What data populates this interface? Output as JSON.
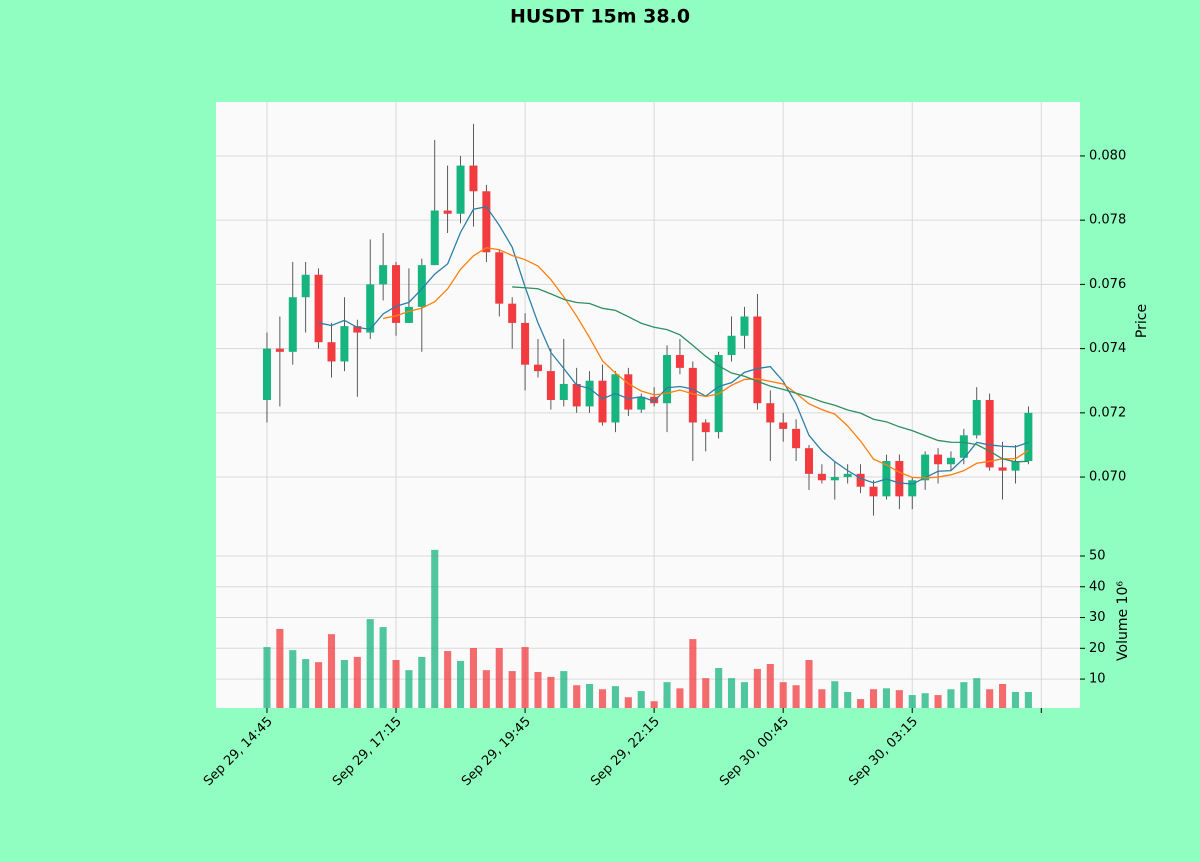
{
  "chart_data": {
    "type": "candlestick",
    "title": "HUSDT 15m 38.0",
    "ylabel": "Price",
    "volume_ylabel": "Volume  10⁶",
    "up_color": "#16b47e",
    "down_color": "#f23b3f",
    "grid": true,
    "xlim": [
      -3.95,
      63
    ],
    "xticks": [
      {
        "value": 0,
        "label": "Sep 29, 14:45"
      },
      {
        "value": 10,
        "label": "Sep 29, 17:15"
      },
      {
        "value": 20,
        "label": "Sep 29, 19:45"
      },
      {
        "value": 30,
        "label": "Sep 29, 22:15"
      },
      {
        "value": 40,
        "label": "Sep 30, 00:45"
      },
      {
        "value": 50,
        "label": "Sep 30, 03:15"
      },
      {
        "value": 60,
        "label": null
      }
    ],
    "ylim": [
      0.06804,
      0.08168
    ],
    "yticks": [
      {
        "value": 0.07,
        "label": "0.070"
      },
      0.072,
      0.074,
      0.076,
      0.078,
      {
        "value": 0.08,
        "label": "0.080"
      }
    ],
    "volume_ylim": [
      0.6,
      55.2
    ],
    "volume_yticks": [
      10,
      20,
      30,
      40,
      50
    ],
    "open": [
      0.0724,
      0.074,
      0.0739,
      0.0756,
      0.0763,
      0.0742,
      0.0736,
      0.0747,
      0.0745,
      0.076,
      0.0766,
      0.0748,
      0.0753,
      0.0766,
      0.0783,
      0.0782,
      0.0797,
      0.0789,
      0.077,
      0.0754,
      0.0748,
      0.0735,
      0.0733,
      0.0724,
      0.0729,
      0.0722,
      0.073,
      0.0717,
      0.0732,
      0.0721,
      0.0725,
      0.0723,
      0.0738,
      0.0734,
      0.0717,
      0.0714,
      0.0738,
      0.0744,
      0.075,
      0.0723,
      0.0717,
      0.0715,
      0.0709,
      0.0701,
      0.0699,
      0.07,
      0.0701,
      0.0697,
      0.0694,
      0.0705,
      0.0694,
      0.0699,
      0.0707,
      0.0704,
      0.0706,
      0.0713,
      0.0724,
      0.0703,
      0.0702,
      0.0705
    ],
    "high": [
      0.0745,
      0.075,
      0.0767,
      0.0767,
      0.0765,
      0.0748,
      0.0756,
      0.0749,
      0.0774,
      0.0776,
      0.0767,
      0.0765,
      0.0768,
      0.0805,
      0.0797,
      0.08,
      0.081,
      0.0791,
      0.0771,
      0.0756,
      0.0751,
      0.0743,
      0.074,
      0.0743,
      0.0734,
      0.0733,
      0.0735,
      0.0733,
      0.0734,
      0.0726,
      0.0728,
      0.0741,
      0.0743,
      0.0736,
      0.0718,
      0.0739,
      0.075,
      0.0753,
      0.0757,
      0.0727,
      0.072,
      0.0718,
      0.071,
      0.0704,
      0.0705,
      0.0704,
      0.0704,
      0.0699,
      0.0707,
      0.0707,
      0.07,
      0.0708,
      0.0709,
      0.0708,
      0.0715,
      0.0728,
      0.0726,
      0.0711,
      0.071,
      0.0722
    ],
    "low": [
      0.0717,
      0.0722,
      0.0735,
      0.0745,
      0.074,
      0.0731,
      0.0733,
      0.0725,
      0.0743,
      0.0755,
      0.0744,
      0.0748,
      0.0739,
      0.0766,
      0.0776,
      0.0779,
      0.0778,
      0.0767,
      0.075,
      0.074,
      0.0727,
      0.0731,
      0.0721,
      0.0722,
      0.072,
      0.072,
      0.0716,
      0.0714,
      0.0719,
      0.072,
      0.0722,
      0.0714,
      0.0732,
      0.0705,
      0.0708,
      0.0712,
      0.0736,
      0.074,
      0.0721,
      0.0705,
      0.0711,
      0.0705,
      0.0696,
      0.0698,
      0.0693,
      0.0698,
      0.0695,
      0.0688,
      0.0693,
      0.069,
      0.069,
      0.0696,
      0.0698,
      0.0702,
      0.0704,
      0.0712,
      0.0702,
      0.0693,
      0.0698,
      0.0704
    ],
    "close": [
      0.074,
      0.0739,
      0.0756,
      0.0763,
      0.0742,
      0.0736,
      0.0747,
      0.0745,
      0.076,
      0.0766,
      0.0748,
      0.0753,
      0.0766,
      0.0783,
      0.0782,
      0.0797,
      0.0789,
      0.077,
      0.0754,
      0.0748,
      0.0735,
      0.0733,
      0.0724,
      0.0729,
      0.0722,
      0.073,
      0.0717,
      0.0732,
      0.0721,
      0.0725,
      0.0723,
      0.0738,
      0.0734,
      0.0717,
      0.0714,
      0.0738,
      0.0744,
      0.075,
      0.0723,
      0.0717,
      0.0715,
      0.0709,
      0.0701,
      0.0699,
      0.07,
      0.0701,
      0.0697,
      0.0694,
      0.0705,
      0.0694,
      0.0699,
      0.0707,
      0.0704,
      0.0706,
      0.0713,
      0.0724,
      0.0703,
      0.0702,
      0.0705,
      0.072
    ],
    "volume": [
      20.4,
      26.3,
      19.4,
      16.5,
      15.5,
      24.6,
      16.2,
      17.2,
      29.5,
      26.9,
      16.2,
      12.9,
      17.2,
      52,
      19.1,
      15.9,
      20.1,
      12.9,
      20.1,
      12.6,
      20.4,
      12.3,
      10.7,
      12.6,
      8,
      8.4,
      6.7,
      7.7,
      4.1,
      6.1,
      2.8,
      9,
      7,
      23,
      10.3,
      13.6,
      10.3,
      9,
      13.3,
      14.9,
      9,
      8,
      16.2,
      6.7,
      9.3,
      5.8,
      3.5,
      6.7,
      7,
      6.4,
      4.8,
      5.4,
      4.8,
      6.7,
      9,
      10.3,
      6.7,
      8.4,
      5.8,
      5.8
    ],
    "moving_averages": [
      {
        "color": "#2b7fa8",
        "values": [
          null,
          null,
          null,
          null,
          0.0748,
          0.07472,
          0.07488,
          0.07466,
          0.0746,
          0.07508,
          0.07532,
          0.07544,
          0.07586,
          0.07632,
          0.07664,
          0.07762,
          0.07834,
          0.07842,
          0.07784,
          0.07716,
          0.07592,
          0.0748,
          0.07388,
          0.07338,
          0.07286,
          0.07276,
          0.07244,
          0.0726,
          0.07244,
          0.0725,
          0.07236,
          0.07278,
          0.07282,
          0.07274,
          0.07252,
          0.07282,
          0.07294,
          0.07326,
          0.07338,
          0.07344,
          0.07298,
          0.07228,
          0.0713,
          0.07082,
          0.07048,
          0.0702,
          0.06996,
          0.06982,
          0.06994,
          0.06982,
          0.06978,
          0.06998,
          0.07018,
          0.0702,
          0.07058,
          0.07108,
          0.071,
          0.07096,
          0.07094,
          0.07108
        ]
      },
      {
        "color": "#ff7f0e",
        "values": [
          null,
          null,
          null,
          null,
          null,
          null,
          null,
          null,
          null,
          0.07494,
          0.07502,
          0.07516,
          0.07526,
          0.07546,
          0.07586,
          0.07647,
          0.07689,
          0.07714,
          0.07708,
          0.0769,
          0.07677,
          0.07657,
          0.07615,
          0.07561,
          0.07501,
          0.07434,
          0.07362,
          0.07324,
          0.07291,
          0.07268,
          0.07256,
          0.07261,
          0.07271,
          0.07259,
          0.07251,
          0.07259,
          0.07286,
          0.07304,
          0.07306,
          0.07298,
          0.0729,
          0.07261,
          0.07228,
          0.0721,
          0.07196,
          0.07159,
          0.07112,
          0.07056,
          0.07038,
          0.07015,
          0.06999,
          0.06997,
          0.07,
          0.07007,
          0.0702,
          0.07043,
          0.07049,
          0.07057,
          0.07057,
          0.07083
        ]
      },
      {
        "color": "#2e8f62",
        "values": [
          null,
          null,
          null,
          null,
          null,
          null,
          null,
          null,
          null,
          null,
          null,
          null,
          null,
          null,
          null,
          null,
          null,
          null,
          null,
          0.07592,
          0.075895,
          0.075865,
          0.075705,
          0.075535,
          0.075435,
          0.075405,
          0.075255,
          0.07519,
          0.074995,
          0.07479,
          0.074665,
          0.07459,
          0.07443,
          0.0741,
          0.07376,
          0.073465,
          0.07324,
          0.07314,
          0.072985,
          0.07283,
          0.07273,
          0.07261,
          0.072495,
          0.072345,
          0.072235,
          0.07209,
          0.07199,
          0.0718,
          0.07172,
          0.071565,
          0.071445,
          0.07129,
          0.07114,
          0.071085,
          0.07108,
          0.07101,
          0.070805,
          0.070565,
          0.070475,
          0.07049
        ]
      }
    ]
  }
}
